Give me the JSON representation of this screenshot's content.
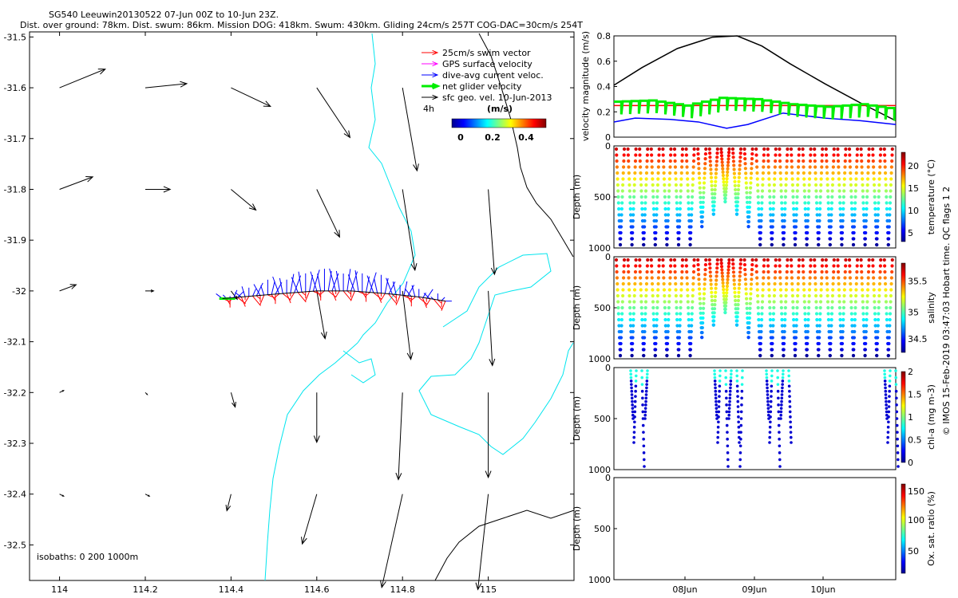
{
  "header": {
    "line1": "SG540 Leeuwin20130522 07-Jun 00Z to 10-Jun 23Z.",
    "line2": "Dist. over ground: 78km. Dist. swum: 86km. Mission DOG: 418km. Swum: 430km. Gliding 24cm/s 257T COG-DAC=30cm/s 254T"
  },
  "watermark": "© IMOS 15-Feb-2019 03:47:03 Hobart time. QC flags 1  2",
  "colors": {
    "isobath": "#00e5ee",
    "swim": "#ff0000",
    "gps": "#ff00ff",
    "dac": "#0000ff",
    "net": "#00ee00",
    "sfc": "#000000",
    "coast": "#000000"
  },
  "chart_data": [
    {
      "type": "scatter",
      "panel": "map",
      "xlim": [
        113.93,
        115.2
      ],
      "ylim": [
        -32.57,
        -31.49
      ],
      "x_ticks": [
        114,
        114.2,
        114.4,
        114.6,
        114.8,
        115
      ],
      "x_tick_labels": [
        "114",
        "114.2",
        "114.4",
        "114.6",
        "114.8",
        "115"
      ],
      "y_ticks": [
        -31.5,
        -31.6,
        -31.7,
        -31.8,
        -31.9,
        -32,
        -32.1,
        -32.2,
        -32.3,
        -32.4,
        -32.5
      ],
      "y_tick_labels": [
        "-31.5",
        "-31.6",
        "-31.7",
        "-31.8",
        "-31.9",
        "-32",
        "-32.1",
        "-32.2",
        "-32.3",
        "-32.4",
        "-32.5"
      ],
      "legend": {
        "placement": "top-right",
        "entries": [
          {
            "label": "25cm/s swim vector",
            "color": "#ff0000"
          },
          {
            "label": "GPS surface velocity",
            "color": "#ff00ff"
          },
          {
            "label": "dive-avg current veloc.",
            "color": "#0000ff"
          },
          {
            "label": "net glider velocity",
            "color": "#00ee00"
          },
          {
            "label": "sfc geo. vel. 10-Jun-2013",
            "color": "#000000"
          }
        ],
        "scale_label": "4h",
        "colorbar_title": "(m/s)",
        "colorbar_ticks": [
          "0",
          "0.2",
          "0.4"
        ]
      },
      "isobaths_label": "isobaths: 0   200  1000m",
      "surface_vectors": [
        {
          "lon": 114.0,
          "lat": -31.6,
          "u": 0.22,
          "v": 0.09
        },
        {
          "lon": 114.2,
          "lat": -31.6,
          "u": 0.2,
          "v": 0.02
        },
        {
          "lon": 114.4,
          "lat": -31.6,
          "u": 0.19,
          "v": -0.09
        },
        {
          "lon": 114.6,
          "lat": -31.6,
          "u": 0.16,
          "v": -0.24
        },
        {
          "lon": 114.8,
          "lat": -31.6,
          "u": 0.07,
          "v": -0.4
        },
        {
          "lon": 114.0,
          "lat": -31.8,
          "u": 0.16,
          "v": 0.06
        },
        {
          "lon": 114.2,
          "lat": -31.8,
          "u": 0.12,
          "v": 0
        },
        {
          "lon": 114.4,
          "lat": -31.8,
          "u": 0.12,
          "v": -0.1
        },
        {
          "lon": 114.6,
          "lat": -31.8,
          "u": 0.11,
          "v": -0.23
        },
        {
          "lon": 114.8,
          "lat": -31.8,
          "u": 0.06,
          "v": -0.39
        },
        {
          "lon": 115.0,
          "lat": -31.8,
          "u": 0.03,
          "v": -0.41
        },
        {
          "lon": 114.0,
          "lat": -32.0,
          "u": 0.08,
          "v": 0.03
        },
        {
          "lon": 114.2,
          "lat": -32.0,
          "u": 0.04,
          "v": 0
        },
        {
          "lon": 114.4,
          "lat": -32.0,
          "u": 0.03,
          "v": -0.04
        },
        {
          "lon": 114.6,
          "lat": -32.0,
          "u": 0.04,
          "v": -0.23
        },
        {
          "lon": 114.8,
          "lat": -32.0,
          "u": 0.04,
          "v": -0.33
        },
        {
          "lon": 115.0,
          "lat": -32.0,
          "u": 0.02,
          "v": -0.36
        },
        {
          "lon": 114.0,
          "lat": -32.2,
          "u": 0.02,
          "v": 0.01
        },
        {
          "lon": 114.2,
          "lat": -32.2,
          "u": 0.01,
          "v": -0.01
        },
        {
          "lon": 114.4,
          "lat": -32.2,
          "u": 0.02,
          "v": -0.07
        },
        {
          "lon": 114.6,
          "lat": -32.2,
          "u": 0.0,
          "v": -0.24
        },
        {
          "lon": 114.8,
          "lat": -32.2,
          "u": -0.02,
          "v": -0.42
        },
        {
          "lon": 115.0,
          "lat": -32.2,
          "u": 0.0,
          "v": -0.41
        },
        {
          "lon": 114.0,
          "lat": -32.4,
          "u": 0.02,
          "v": -0.01
        },
        {
          "lon": 114.2,
          "lat": -32.4,
          "u": 0.02,
          "v": -0.01
        },
        {
          "lon": 114.4,
          "lat": -32.4,
          "u": -0.02,
          "v": -0.08
        },
        {
          "lon": 114.6,
          "lat": -32.4,
          "u": -0.07,
          "v": -0.24
        },
        {
          "lon": 114.8,
          "lat": -32.4,
          "u": -0.1,
          "v": -0.45
        },
        {
          "lon": 115.0,
          "lat": -32.4,
          "u": -0.05,
          "v": -0.46
        }
      ],
      "track": {
        "lon": [
          114.38,
          114.45,
          114.52,
          114.6,
          114.68,
          114.76,
          114.84,
          114.9
        ],
        "lat": [
          -32.015,
          -32.01,
          -32.005,
          -32.0,
          -32.0,
          -32.005,
          -32.012,
          -32.02
        ]
      }
    },
    {
      "type": "line",
      "panel": "velocity",
      "ylabel": "velocity magnitude (m/s)",
      "xlim": [
        0,
        4
      ],
      "ylim": [
        0,
        0.8
      ],
      "y_ticks": [
        0,
        0.2,
        0.4,
        0.6,
        0.8
      ],
      "series": [
        {
          "color": "#000000",
          "x": [
            0,
            0.4,
            0.9,
            1.4,
            1.75,
            2.1,
            2.5,
            3.0,
            3.5,
            4.0
          ],
          "y": [
            0.41,
            0.55,
            0.7,
            0.79,
            0.8,
            0.72,
            0.58,
            0.42,
            0.27,
            0.13
          ]
        },
        {
          "color": "#ff0000",
          "x": [
            0,
            4.0
          ],
          "y": [
            0.25,
            0.25
          ]
        },
        {
          "color": "#0000ff",
          "x": [
            0,
            0.3,
            0.8,
            1.2,
            1.6,
            1.9,
            2.4,
            3.0,
            3.5,
            4.0
          ],
          "y": [
            0.12,
            0.15,
            0.14,
            0.12,
            0.07,
            0.1,
            0.19,
            0.15,
            0.13,
            0.1
          ]
        },
        {
          "color": "#00ee00",
          "x": [
            0,
            0.5,
            1.0,
            1.5,
            2.0,
            2.5,
            3.0,
            3.5,
            4.0
          ],
          "y": [
            0.24,
            0.25,
            0.21,
            0.27,
            0.26,
            0.22,
            0.2,
            0.22,
            0.18
          ]
        }
      ]
    },
    {
      "type": "scatter",
      "panel": "temperature",
      "ylabel": "Depth (m)",
      "colorbar_label": "temperature (°C)",
      "colorbar_ticks": [
        "5",
        "10",
        "15",
        "20"
      ],
      "ylim": [
        1000,
        0
      ],
      "y_ticks": [
        "0",
        "500",
        "1000"
      ]
    },
    {
      "type": "scatter",
      "panel": "salinity",
      "ylabel": "Depth (m)",
      "colorbar_label": "salinity",
      "colorbar_ticks": [
        "34.5",
        "35",
        "35.5"
      ],
      "ylim": [
        1000,
        0
      ],
      "y_ticks": [
        "0",
        "500",
        "1000"
      ]
    },
    {
      "type": "scatter",
      "panel": "chl",
      "ylabel": "Depth (m)",
      "colorbar_label": "chl-a (mg m-3)",
      "colorbar_ticks": [
        "0",
        "0.5",
        "1",
        "1.5",
        "2"
      ],
      "ylim": [
        1000,
        0
      ],
      "y_ticks": [
        "0",
        "500",
        "1000"
      ]
    },
    {
      "type": "scatter",
      "panel": "oxygen",
      "ylabel": "Depth (m)",
      "colorbar_label": "Ox. sat. ratio (%)",
      "colorbar_ticks": [
        "50",
        "100",
        "150"
      ],
      "ylim": [
        1000,
        0
      ],
      "y_ticks": [
        "0",
        "500",
        "1000"
      ],
      "x_tick_labels": [
        "08Jun",
        "09Jun",
        "10Jun"
      ]
    }
  ]
}
